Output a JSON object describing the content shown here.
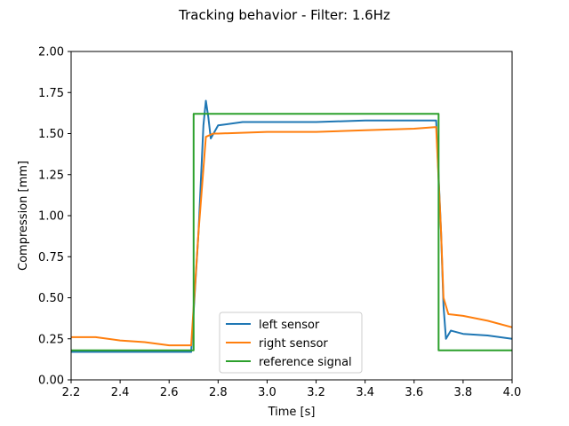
{
  "chart_data": {
    "type": "line",
    "title": "Tracking behavior - Filter: 1.6Hz",
    "xlabel": "Time [s]",
    "ylabel": "Compression [mm]",
    "xlim": [
      2.2,
      4.0
    ],
    "ylim": [
      0.0,
      2.0
    ],
    "xticks": [
      2.2,
      2.4,
      2.6,
      2.8,
      3.0,
      3.2,
      3.4,
      3.6,
      3.8,
      4.0
    ],
    "xtick_labels": [
      "2.2",
      "2.4",
      "2.6",
      "2.8",
      "3.0",
      "3.2",
      "3.4",
      "3.6",
      "3.8",
      "4.0"
    ],
    "yticks": [
      0.0,
      0.25,
      0.5,
      0.75,
      1.0,
      1.25,
      1.5,
      1.75,
      2.0
    ],
    "ytick_labels": [
      "0.00",
      "0.25",
      "0.50",
      "0.75",
      "1.00",
      "1.25",
      "1.50",
      "1.75",
      "2.00"
    ],
    "grid": false,
    "legend_position": "lower-center",
    "series": [
      {
        "name": "left sensor",
        "color": "#1f77b4",
        "x": [
          2.2,
          2.3,
          2.4,
          2.5,
          2.6,
          2.69,
          2.72,
          2.74,
          2.75,
          2.76,
          2.77,
          2.8,
          2.9,
          3.0,
          3.2,
          3.4,
          3.6,
          3.69,
          3.71,
          3.72,
          3.73,
          3.75,
          3.8,
          3.9,
          4.0
        ],
        "y": [
          0.17,
          0.17,
          0.17,
          0.17,
          0.17,
          0.17,
          0.9,
          1.55,
          1.7,
          1.6,
          1.47,
          1.55,
          1.57,
          1.57,
          1.57,
          1.58,
          1.58,
          1.58,
          0.9,
          0.45,
          0.25,
          0.3,
          0.28,
          0.27,
          0.25
        ]
      },
      {
        "name": "right sensor",
        "color": "#ff7f0e",
        "x": [
          2.2,
          2.3,
          2.4,
          2.5,
          2.6,
          2.69,
          2.72,
          2.75,
          2.78,
          2.8,
          3.0,
          3.2,
          3.4,
          3.6,
          3.69,
          3.71,
          3.72,
          3.74,
          3.8,
          3.9,
          4.0
        ],
        "y": [
          0.26,
          0.26,
          0.24,
          0.23,
          0.21,
          0.21,
          0.9,
          1.48,
          1.5,
          1.5,
          1.51,
          1.51,
          1.52,
          1.53,
          1.54,
          0.9,
          0.5,
          0.4,
          0.39,
          0.36,
          0.32
        ]
      },
      {
        "name": "reference signal",
        "color": "#2ca02c",
        "x": [
          2.2,
          2.3,
          2.4,
          2.5,
          2.6,
          2.7,
          2.7,
          2.8,
          3.0,
          3.2,
          3.4,
          3.6,
          3.7,
          3.7,
          3.8,
          3.9,
          4.0
        ],
        "y": [
          0.18,
          0.18,
          0.18,
          0.18,
          0.18,
          0.18,
          1.62,
          1.62,
          1.62,
          1.62,
          1.62,
          1.62,
          1.62,
          0.18,
          0.18,
          0.18,
          0.18
        ]
      }
    ]
  }
}
